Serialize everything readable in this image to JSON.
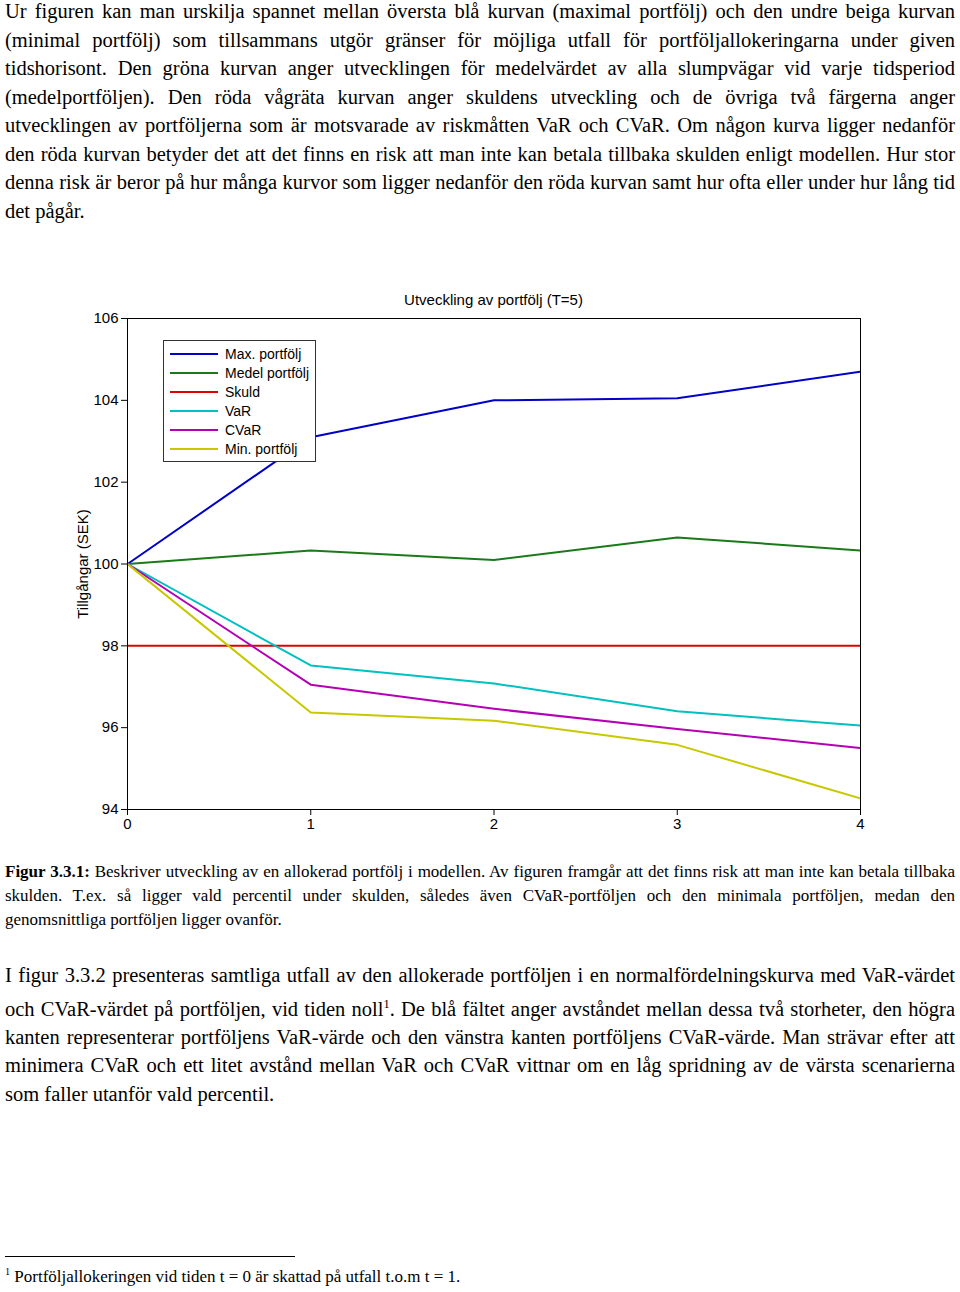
{
  "paragraph_1": "Ur figuren kan man urskilja spannet mellan översta blå kurvan (maximal portfölj) och den undre beiga kurvan (minimal portfölj) som tillsammans utgör gränser för möjliga utfall för portföljallokeringarna under given tidshorisont. Den gröna kurvan anger utvecklingen för medelvärdet av alla slumpvägar vid varje tidsperiod (medelportföljen). Den röda vågräta kurvan anger skuldens utveckling och de övriga två färgerna anger utvecklingen av portföljerna som är motsvarade av riskmåtten VaR och CVaR. Om någon kurva ligger nedanför den röda kurvan betyder det att det finns en risk att man inte kan betala tillbaka skulden enligt modellen. Hur stor denna risk är beror på hur många kurvor som ligger nedanför den röda kurvan samt hur ofta eller under hur lång tid det pågår.",
  "chart_data": {
    "type": "line",
    "title": "Utveckling av portfölj (T=5)",
    "ylabel": "Tillgångar (SEK)",
    "x": [
      0,
      1,
      2,
      3,
      4
    ],
    "xlim": [
      0,
      4
    ],
    "xticks": [
      0,
      1,
      2,
      3,
      4
    ],
    "ylim": [
      94,
      106
    ],
    "yticks": [
      94,
      96,
      98,
      100,
      102,
      104,
      106
    ],
    "grid": false,
    "legend": "upper left",
    "series": [
      {
        "name": "Max. portfölj",
        "color": "#0000c8",
        "values": [
          100,
          103.1,
          104.0,
          104.05,
          104.7
        ]
      },
      {
        "name": "Medel portfölj",
        "color": "#1a7a1a",
        "values": [
          100,
          100.33,
          100.1,
          100.65,
          100.33
        ]
      },
      {
        "name": "Skuld",
        "color": "#e00000",
        "values": [
          98,
          98,
          98,
          98,
          98
        ]
      },
      {
        "name": "VaR",
        "color": "#00c0c0",
        "values": [
          100,
          97.52,
          97.08,
          96.4,
          96.05
        ]
      },
      {
        "name": "CVaR",
        "color": "#b400b4",
        "values": [
          100,
          97.05,
          96.46,
          95.97,
          95.5
        ]
      },
      {
        "name": "Min. portfölj",
        "color": "#c8c800",
        "values": [
          100,
          96.37,
          96.17,
          95.58,
          94.27
        ]
      }
    ]
  },
  "caption": {
    "label": "Figur 3.3.1:",
    "text": "Beskriver utveckling av en allokerad portfölj i modellen. Av figuren framgår att det finns risk att man inte kan betala tillbaka skulden. T.ex. så ligger vald percentil under skulden, således även CVaR-portföljen och den minimala portföljen, medan den genomsnittliga portföljen ligger ovanför."
  },
  "paragraph_2": {
    "before_footnote": "I figur 3.3.2 presenteras samtliga utfall av den allokerade portföljen i en normalfördelningskurva med VaR-värdet och CVaR-värdet på portföljen, vid tiden noll",
    "footnote_ref": "1",
    "after_footnote": ". De blå fältet anger avståndet mellan dessa två storheter, den högra kanten representerar portföljens VaR-värde och den vänstra kanten portföljens CVaR-värde. Man strävar efter att minimera CVaR och ett litet avstånd mellan VaR och CVaR vittnar om en låg spridning av de värsta scenarierna som faller utanför vald percentil."
  },
  "footnote": {
    "marker": "1",
    "text": "Portföljallokeringen vid tiden t = 0 är skattad på utfall t.o.m t = 1."
  }
}
